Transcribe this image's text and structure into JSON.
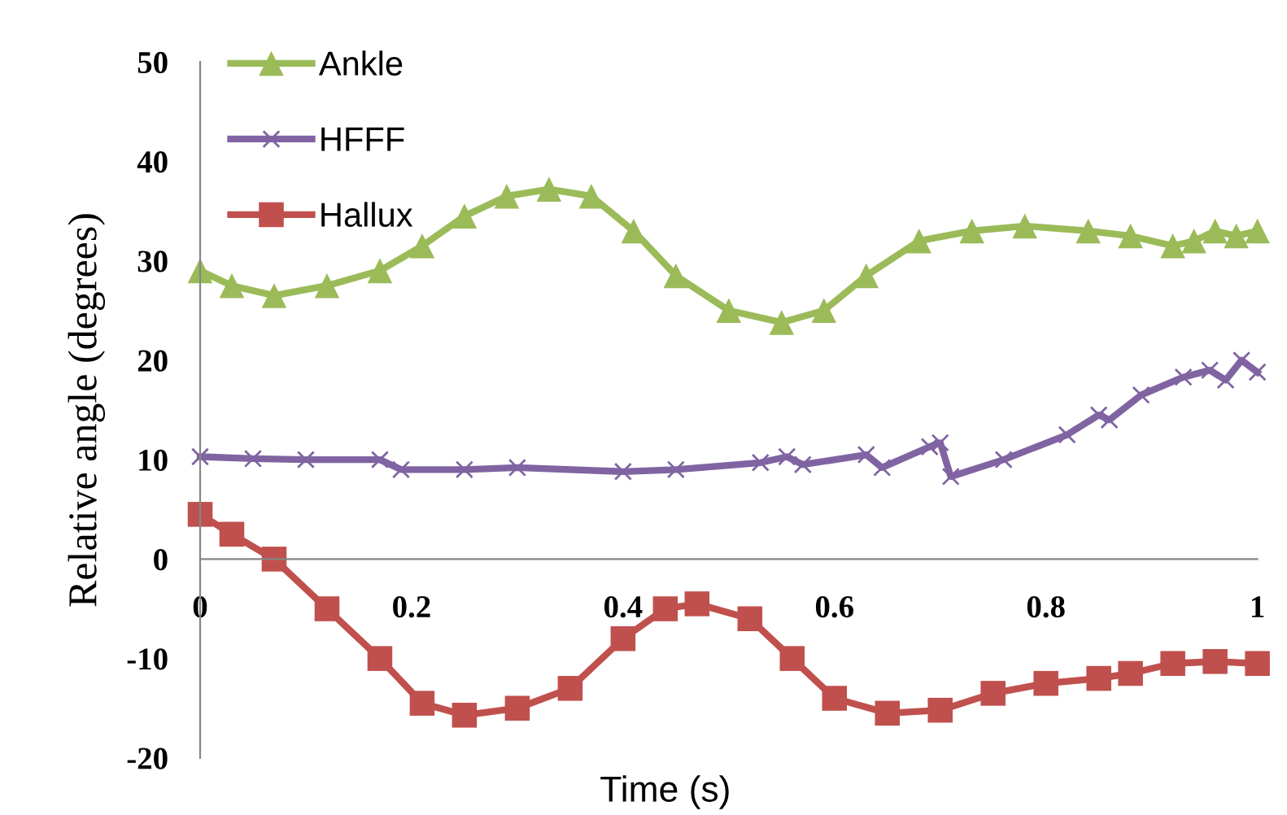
{
  "chart_data": {
    "type": "line",
    "xlabel": "Time (s)",
    "ylabel": "Relative angle (degrees)",
    "xlim": [
      0,
      1
    ],
    "xticks": [
      0,
      0.2,
      0.4,
      0.6,
      0.8,
      1
    ],
    "ylim": [
      -20,
      50
    ],
    "yticks": [
      -20,
      -10,
      0,
      10,
      20,
      30,
      40,
      50
    ],
    "grid": false,
    "legend": "top left",
    "series": [
      {
        "name": "Ankle",
        "color": "#9bbb59",
        "marker": "triangle",
        "x": [
          0,
          0.03,
          0.07,
          0.12,
          0.17,
          0.21,
          0.25,
          0.29,
          0.33,
          0.37,
          0.41,
          0.45,
          0.5,
          0.55,
          0.59,
          0.63,
          0.68,
          0.73,
          0.78,
          0.84,
          0.88,
          0.92,
          0.94,
          0.96,
          0.98,
          1.0
        ],
        "values": [
          29,
          27.5,
          26.5,
          27.5,
          29,
          31.5,
          34.5,
          36.5,
          37.2,
          36.5,
          33,
          28.5,
          25,
          23.8,
          25,
          28.5,
          32,
          33,
          33.5,
          33,
          32.5,
          31.5,
          32,
          33,
          32.5,
          33
        ]
      },
      {
        "name": "HFFF",
        "color": "#8064a2",
        "marker": "cross",
        "x": [
          0,
          0.05,
          0.1,
          0.17,
          0.19,
          0.25,
          0.3,
          0.4,
          0.45,
          0.53,
          0.555,
          0.57,
          0.63,
          0.645,
          0.69,
          0.7,
          0.71,
          0.76,
          0.82,
          0.85,
          0.86,
          0.89,
          0.93,
          0.955,
          0.97,
          0.985,
          1.0
        ],
        "values": [
          10.3,
          10.1,
          10,
          10,
          9,
          9,
          9.2,
          8.8,
          9,
          9.7,
          10.3,
          9.5,
          10.5,
          9.2,
          11.3,
          11.7,
          8.3,
          10,
          12.5,
          14.5,
          14,
          16.5,
          18.3,
          19,
          18,
          20,
          18.8
        ]
      },
      {
        "name": "Hallux",
        "color": "#c0504d",
        "marker": "square",
        "x": [
          0,
          0.03,
          0.07,
          0.12,
          0.17,
          0.21,
          0.25,
          0.3,
          0.35,
          0.4,
          0.44,
          0.47,
          0.52,
          0.56,
          0.6,
          0.65,
          0.7,
          0.75,
          0.8,
          0.85,
          0.88,
          0.92,
          0.96,
          1.0
        ],
        "values": [
          4.5,
          2.5,
          0,
          -5,
          -10,
          -14.5,
          -15.7,
          -15,
          -13,
          -8,
          -5,
          -4.5,
          -6,
          -10,
          -14,
          -15.5,
          -15.2,
          -13.5,
          -12.5,
          -12,
          -11.5,
          -10.5,
          -10.3,
          -10.5
        ]
      }
    ]
  }
}
